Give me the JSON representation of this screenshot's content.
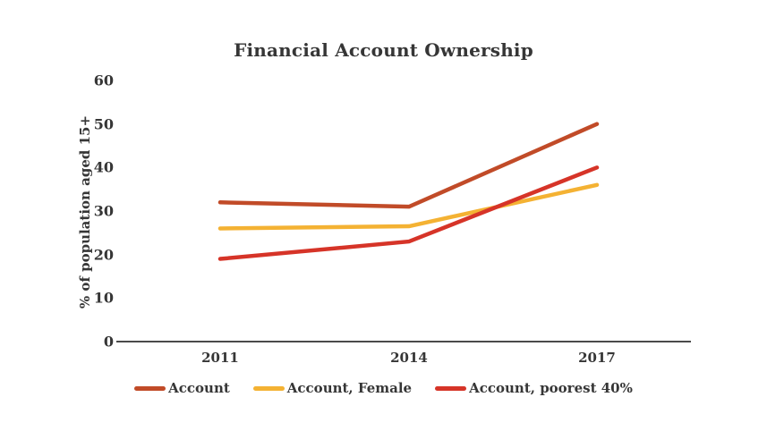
{
  "page": {
    "background_color": "#ffffff",
    "text_color": "#363636",
    "axis_color": "#4a4a4a"
  },
  "chart_data": {
    "type": "line",
    "title": "Financial Account Ownership",
    "ylabel": "% of population aged 15+",
    "xlabel": "",
    "categories": [
      "2011",
      "2014",
      "2017"
    ],
    "series": [
      {
        "name": "Account",
        "color": "#C14B28",
        "values": [
          32,
          31,
          50
        ]
      },
      {
        "name": "Account, Female",
        "color": "#F4B233",
        "values": [
          26,
          26.5,
          36
        ]
      },
      {
        "name": "Account, poorest 40%",
        "color": "#D63428",
        "values": [
          19,
          23,
          40
        ]
      }
    ],
    "ylim": [
      0,
      60
    ],
    "y_ticks": [
      0,
      10,
      20,
      30,
      40,
      50,
      60
    ],
    "grid": false,
    "legend_position": "bottom"
  }
}
